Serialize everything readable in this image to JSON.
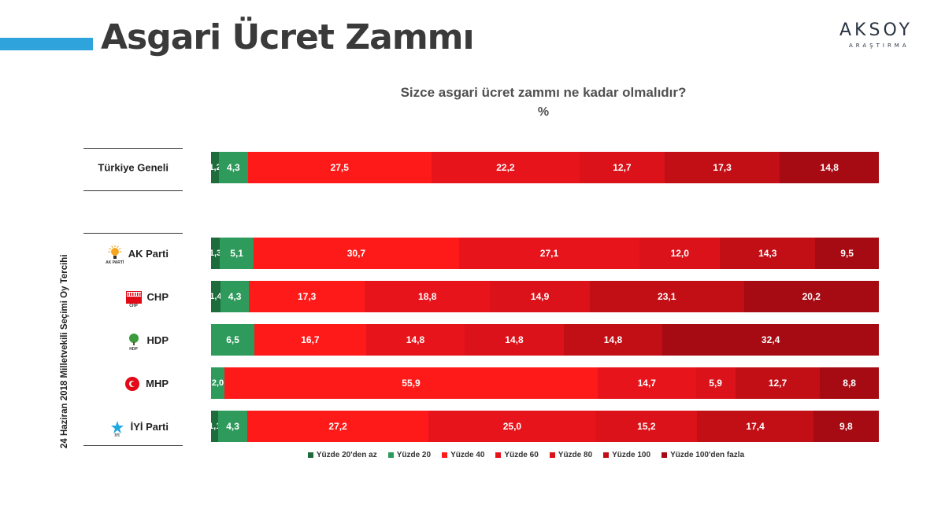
{
  "header": {
    "title": "Asgari Ücret Zammı",
    "logo_name": "AKSOY",
    "logo_sub": "ARAŞTIRMA"
  },
  "chart_data": {
    "type": "bar",
    "orientation": "horizontal",
    "stacked": true,
    "normalized_100": true,
    "title": "Sizce asgari ücret zammı ne kadar olmalıdır?",
    "subtitle": "%",
    "group_label": "24 Haziran 2018 Milletvekili Seçimi Oy Tercihi",
    "legend_position": "bottom",
    "categories": [
      "Türkiye Geneli",
      "AK Parti",
      "CHP",
      "HDP",
      "MHP",
      "İYİ Parti"
    ],
    "series": [
      {
        "name": "Yüzde 20'den az",
        "color": "#1e6b3c",
        "values": [
          1.2,
          1.3,
          1.4,
          0,
          0,
          1.1
        ]
      },
      {
        "name": "Yüzde 20",
        "color": "#2e9a5c",
        "values": [
          4.3,
          5.1,
          4.3,
          6.5,
          2.0,
          4.3
        ]
      },
      {
        "name": "Yüzde 40",
        "color": "#ff1a1a",
        "values": [
          27.5,
          30.7,
          17.3,
          16.7,
          55.9,
          27.2
        ]
      },
      {
        "name": "Yüzde 60",
        "color": "#e8141c",
        "values": [
          22.2,
          27.1,
          18.8,
          14.8,
          14.7,
          25.0
        ]
      },
      {
        "name": "Yüzde 80",
        "color": "#db1219",
        "values": [
          12.7,
          12.0,
          14.9,
          14.8,
          5.9,
          15.2
        ]
      },
      {
        "name": "Yüzde 100",
        "color": "#c20f16",
        "values": [
          17.3,
          14.3,
          23.1,
          14.8,
          12.7,
          17.4
        ]
      },
      {
        "name": "Yüzde 100'den fazla",
        "color": "#a60a12",
        "values": [
          14.8,
          9.5,
          20.2,
          32.4,
          8.8,
          9.8
        ]
      }
    ],
    "labels": [
      [
        "1,2",
        "4,3",
        "27,5",
        "22,2",
        "12,7",
        "17,3",
        "14,8"
      ],
      [
        "1,3",
        "5,1",
        "30,7",
        "27,1",
        "12,0",
        "14,3",
        "9,5"
      ],
      [
        "1,4",
        "4,3",
        "17,3",
        "18,8",
        "14,9",
        "23,1",
        "20,2"
      ],
      [
        "",
        "6,5",
        "16,7",
        "14,8",
        "14,8",
        "14,8",
        "32,4"
      ],
      [
        "",
        "2,0",
        "55,9",
        "14,7",
        "5,9",
        "12,7",
        "8,8"
      ],
      [
        "1,1",
        "4,3",
        "27,2",
        "25,0",
        "15,2",
        "17,4",
        "9,8"
      ]
    ]
  },
  "party_logos": {
    "AK Parti": {
      "icon": "ak-parti-bulb-icon",
      "text": "AK PARTİ"
    },
    "CHP": {
      "icon": "chp-logo-icon",
      "text": "CHP"
    },
    "HDP": {
      "icon": "hdp-tree-icon",
      "text": "HDP"
    },
    "MHP": {
      "icon": "mhp-crescent-icon",
      "text": ""
    },
    "İYİ Parti": {
      "icon": "iyi-parti-star-icon",
      "text": "İYİ"
    }
  }
}
